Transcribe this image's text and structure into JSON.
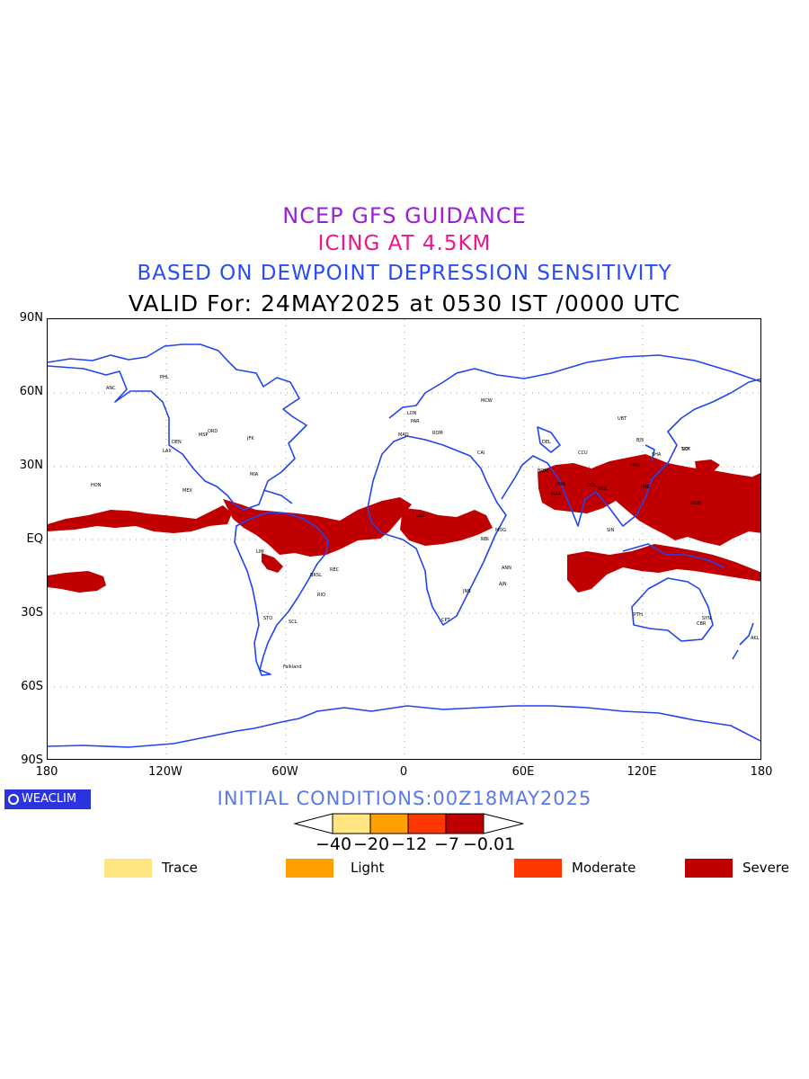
{
  "titles": {
    "line1": "NCEP GFS GUIDANCE",
    "line2": "ICING AT 4.5KM",
    "line3": "BASED ON DEWPOINT DEPRESSION SENSITIVITY",
    "line4": "VALID For: 24MAY2025 at 0530 IST /0000 UTC"
  },
  "map": {
    "lat_labels": [
      "90N",
      "60N",
      "30N",
      "EQ",
      "30S",
      "60S",
      "90S"
    ],
    "lon_labels": [
      "180",
      "120W",
      "60W",
      "0",
      "60E",
      "120E",
      "180"
    ],
    "coast_color": "#2244ee",
    "grid": "dotted",
    "station_labels": [
      "ANC",
      "PHL",
      "MSP",
      "DEN",
      "ORD",
      "LAX",
      "JFK",
      "MIA",
      "MEX",
      "HON",
      "LIM",
      "BRSL",
      "REC",
      "RIO",
      "STO",
      "SCL",
      "Falkland",
      "LON",
      "PAR",
      "MAD",
      "ROM",
      "CAI",
      "LOS",
      "NBI",
      "MOG",
      "JNB",
      "CPT",
      "ANN",
      "AJN",
      "MCW",
      "DEL",
      "BOM",
      "CCU",
      "MAA",
      "DHA",
      "UBT",
      "BJS",
      "SHA",
      "TOK",
      "SKY",
      "HKG",
      "MNL",
      "BKK",
      "SIN",
      "DOL",
      "GUM",
      "PTH",
      "SYN",
      "CBR",
      "AKL"
    ]
  },
  "footer": {
    "logo": "WEACLIM",
    "initial_conditions": "INITIAL CONDITIONS:00Z18MAY2025"
  },
  "colorbar": {
    "labels": [
      "−40",
      "−20",
      "−12",
      "−7",
      "−0.01"
    ],
    "colors": [
      "#ffe680",
      "#ffa000",
      "#ff3800",
      "#c00000"
    ]
  },
  "legend": [
    {
      "label": "Trace",
      "color": "#ffe680"
    },
    {
      "label": "Light",
      "color": "#ffa000"
    },
    {
      "label": "Moderate",
      "color": "#ff3800"
    },
    {
      "label": "Severe",
      "color": "#c00000"
    }
  ],
  "colors": {
    "severe": "#c00000",
    "coast": "#2244ee"
  }
}
